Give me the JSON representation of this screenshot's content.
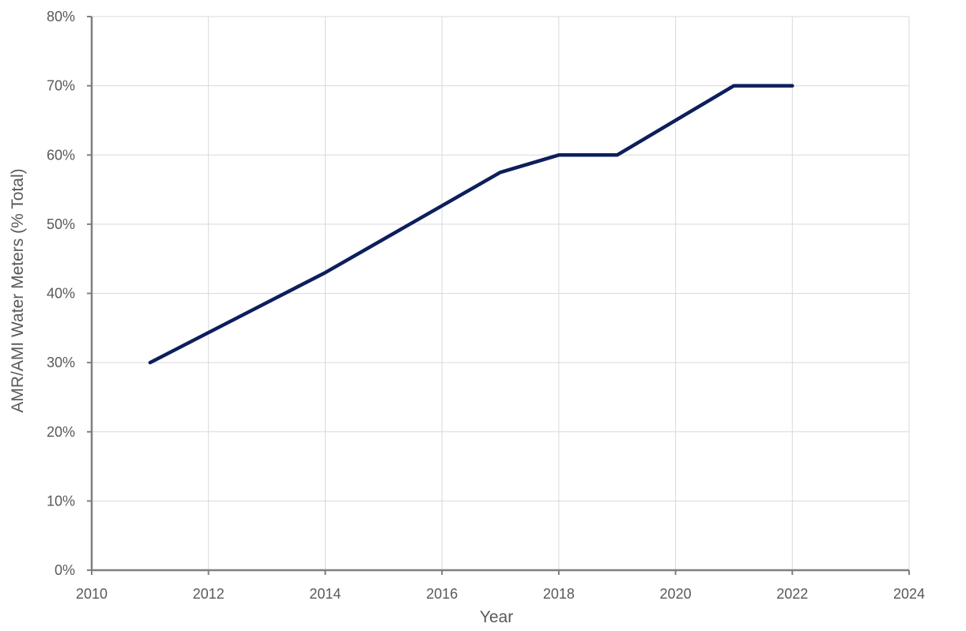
{
  "chart_data": {
    "type": "line",
    "title": "",
    "xlabel": "Year",
    "ylabel": "AMR/AMI Water Meters (% Total)",
    "xlim": [
      2010,
      2024
    ],
    "ylim": [
      0,
      80
    ],
    "xticks": [
      2010,
      2012,
      2014,
      2016,
      2018,
      2020,
      2022,
      2024
    ],
    "yticks": [
      0,
      10,
      20,
      30,
      40,
      50,
      60,
      70,
      80
    ],
    "xtick_labels": [
      "2010",
      "2012",
      "2014",
      "2016",
      "2018",
      "2020",
      "2022",
      "2024"
    ],
    "ytick_labels": [
      "0%",
      "10%",
      "20%",
      "30%",
      "40%",
      "50%",
      "60%",
      "70%",
      "80%"
    ],
    "grid": true,
    "legend": "none",
    "series": [
      {
        "color": "#0c1f5c",
        "points": [
          {
            "x": 2011,
            "y": 30
          },
          {
            "x": 2014,
            "y": 43
          },
          {
            "x": 2017,
            "y": 57.5
          },
          {
            "x": 2018,
            "y": 60
          },
          {
            "x": 2019,
            "y": 60
          },
          {
            "x": 2021,
            "y": 70
          },
          {
            "x": 2022,
            "y": 70
          }
        ]
      }
    ]
  }
}
